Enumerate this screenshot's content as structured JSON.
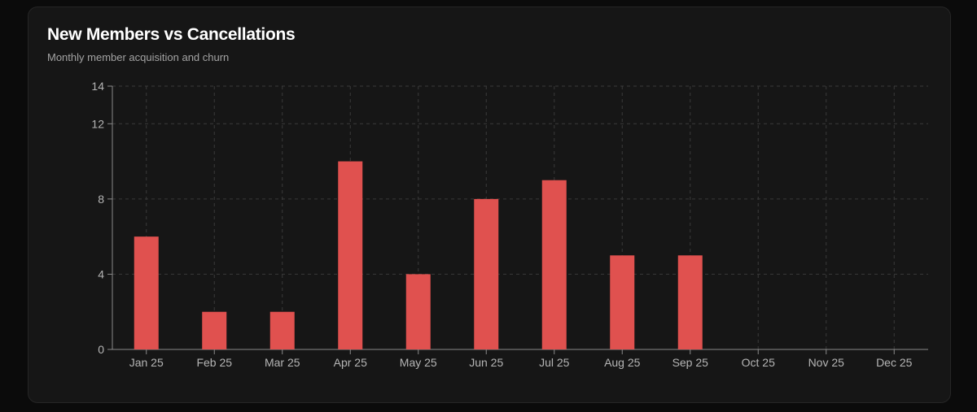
{
  "card": {
    "title": "New Members vs Cancellations",
    "subtitle": "Monthly member acquisition and churn"
  },
  "chart_data": {
    "type": "bar",
    "title": "New Members vs Cancellations",
    "subtitle": "Monthly member acquisition and churn",
    "categories": [
      "Jan 25",
      "Feb 25",
      "Mar 25",
      "Apr 25",
      "May 25",
      "Jun 25",
      "Jul 25",
      "Aug 25",
      "Sep 25",
      "Oct 25",
      "Nov 25",
      "Dec 25"
    ],
    "series": [
      {
        "color": "#e0514f",
        "values": [
          6,
          2,
          2,
          10,
          4,
          8,
          9,
          5,
          5,
          0,
          0,
          0
        ]
      }
    ],
    "yticks": [
      0,
      4,
      8,
      12,
      14
    ],
    "ylim": [
      0,
      14
    ],
    "grid": true,
    "legend": "none",
    "colors": {
      "bar": "#e0514f",
      "grid": "#3a3a3a",
      "axis": "#8a8a8a",
      "tick_text": "#b5b5b5"
    }
  }
}
